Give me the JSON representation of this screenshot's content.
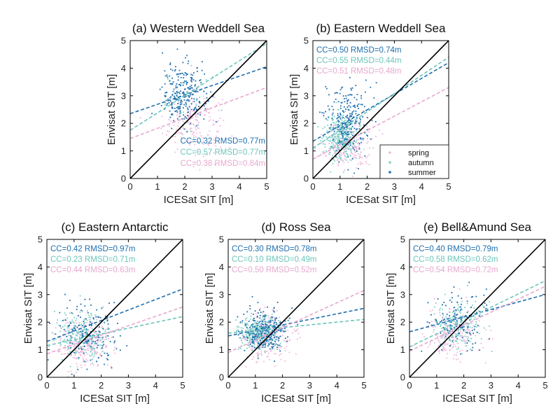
{
  "colors": {
    "spring": "#f2b8dc",
    "autumn": "#7fd1c8",
    "summer": "#1f6fae",
    "one_to_one": "#000000"
  },
  "legend": {
    "entries": [
      {
        "name": "spring",
        "color": "#f2b8dc"
      },
      {
        "name": "autumn",
        "color": "#7fd1c8"
      },
      {
        "name": "summer",
        "color": "#1f6fae"
      }
    ],
    "placement": "bottom-right of panel (b)"
  },
  "chart_data": [
    {
      "type": "scatter",
      "title": "(a) Western Weddell Sea",
      "xlabel": "ICESat SIT [m]",
      "ylabel": "Envisat SIT [m]",
      "xlim": [
        0,
        5
      ],
      "ylim": [
        0,
        5
      ],
      "xticks": [
        "0",
        "1",
        "2",
        "3",
        "4",
        "5"
      ],
      "yticks": [
        "0",
        "1",
        "2",
        "3",
        "4",
        "5"
      ],
      "one_to_one_line": true,
      "stats_position": "bottom-right",
      "stats": [
        {
          "season": "summer",
          "text": "CC=0.32 RMSD=0.77m"
        },
        {
          "season": "autumn",
          "text": "CC=0.57 RMSD=0.77m"
        },
        {
          "season": "spring",
          "text": "CC=0.38 RMSD=0.84m"
        }
      ],
      "fit_lines": [
        {
          "season": "summer",
          "x": [
            0,
            5
          ],
          "y": [
            2.35,
            4.05
          ]
        },
        {
          "season": "autumn",
          "x": [
            0,
            5
          ],
          "y": [
            1.75,
            4.9
          ]
        },
        {
          "season": "spring",
          "x": [
            0,
            5
          ],
          "y": [
            1.45,
            3.3
          ]
        }
      ],
      "clouds": [
        {
          "season": "spring",
          "count": 170,
          "cx": 2.3,
          "cy": 2.0,
          "sx": 0.55,
          "sy": 0.55
        },
        {
          "season": "autumn",
          "count": 40,
          "cx": 2.3,
          "cy": 2.7,
          "sx": 0.5,
          "sy": 0.6
        },
        {
          "season": "summer",
          "count": 260,
          "cx": 1.95,
          "cy": 3.05,
          "sx": 0.4,
          "sy": 0.55
        }
      ]
    },
    {
      "type": "scatter",
      "title": "(b) Eastern Weddell Sea",
      "xlabel": "ICESat SIT [m]",
      "ylabel": "Envisat SIT [m]",
      "xlim": [
        0,
        5
      ],
      "ylim": [
        0,
        5
      ],
      "xticks": [
        "0",
        "1",
        "2",
        "3",
        "4",
        "5"
      ],
      "yticks": [
        "0",
        "1",
        "2",
        "3",
        "4",
        "5"
      ],
      "one_to_one_line": true,
      "stats_position": "top-left",
      "stats": [
        {
          "season": "summer",
          "text": "CC=0.50 RMSD=0.74m"
        },
        {
          "season": "autumn",
          "text": "CC=0.55 RMSD=0.44m"
        },
        {
          "season": "spring",
          "text": "CC=0.51 RMSD=0.48m"
        }
      ],
      "fit_lines": [
        {
          "season": "summer",
          "x": [
            0,
            5
          ],
          "y": [
            1.35,
            4.2
          ]
        },
        {
          "season": "autumn",
          "x": [
            0,
            5
          ],
          "y": [
            1.1,
            4.4
          ]
        },
        {
          "season": "spring",
          "x": [
            0,
            5
          ],
          "y": [
            0.7,
            3.3
          ]
        }
      ],
      "clouds": [
        {
          "season": "spring",
          "count": 220,
          "cx": 1.3,
          "cy": 1.25,
          "sx": 0.45,
          "sy": 0.45
        },
        {
          "season": "autumn",
          "count": 330,
          "cx": 1.0,
          "cy": 1.5,
          "sx": 0.3,
          "sy": 0.4
        },
        {
          "season": "summer",
          "count": 240,
          "cx": 1.25,
          "cy": 2.1,
          "sx": 0.4,
          "sy": 0.65
        }
      ]
    },
    {
      "type": "scatter",
      "title": "(c) Eastern Antarctic",
      "xlabel": "ICESat SIT [m]",
      "ylabel": "Envisat SIT [m]",
      "xlim": [
        0,
        5
      ],
      "ylim": [
        0,
        5
      ],
      "xticks": [
        "0",
        "1",
        "2",
        "3",
        "4",
        "5"
      ],
      "yticks": [
        "0",
        "1",
        "2",
        "3",
        "4",
        "5"
      ],
      "one_to_one_line": true,
      "stats_position": "top-left",
      "stats": [
        {
          "season": "summer",
          "text": "CC=0.42 RMSD=0.97m"
        },
        {
          "season": "autumn",
          "text": "CC=0.23 RMSD=0.71m"
        },
        {
          "season": "spring",
          "text": "CC=0.44 RMSD=0.63m"
        }
      ],
      "fit_lines": [
        {
          "season": "summer",
          "x": [
            0,
            5
          ],
          "y": [
            1.3,
            3.2
          ]
        },
        {
          "season": "autumn",
          "x": [
            0,
            5
          ],
          "y": [
            1.15,
            2.2
          ]
        },
        {
          "season": "spring",
          "x": [
            0,
            5
          ],
          "y": [
            0.85,
            2.55
          ]
        }
      ],
      "clouds": [
        {
          "season": "spring",
          "count": 260,
          "cx": 1.4,
          "cy": 1.2,
          "sx": 0.5,
          "sy": 0.45
        },
        {
          "season": "autumn",
          "count": 240,
          "cx": 1.25,
          "cy": 1.5,
          "sx": 0.45,
          "sy": 0.45
        },
        {
          "season": "summer",
          "count": 160,
          "cx": 1.45,
          "cy": 1.6,
          "sx": 0.6,
          "sy": 0.55
        }
      ]
    },
    {
      "type": "scatter",
      "title": "(d) Ross Sea",
      "xlabel": "ICESat SIT [m]",
      "ylabel": "Envisat SIT [m]",
      "xlim": [
        0,
        5
      ],
      "ylim": [
        0,
        5
      ],
      "xticks": [
        "0",
        "1",
        "2",
        "3",
        "4",
        "5"
      ],
      "yticks": [
        "0",
        "1",
        "2",
        "3",
        "4",
        "5"
      ],
      "one_to_one_line": true,
      "stats_position": "top-left",
      "stats": [
        {
          "season": "summer",
          "text": "CC=0.30 RMSD=0.78m"
        },
        {
          "season": "autumn",
          "text": "CC=0.10 RMSD=0.49m"
        },
        {
          "season": "spring",
          "text": "CC=0.50 RMSD=0.52m"
        }
      ],
      "fit_lines": [
        {
          "season": "summer",
          "x": [
            0,
            5
          ],
          "y": [
            1.5,
            2.5
          ]
        },
        {
          "season": "autumn",
          "x": [
            0,
            5
          ],
          "y": [
            1.6,
            2.1
          ]
        },
        {
          "season": "spring",
          "x": [
            0,
            5
          ],
          "y": [
            0.9,
            3.15
          ]
        }
      ],
      "clouds": [
        {
          "season": "spring",
          "count": 220,
          "cx": 1.4,
          "cy": 1.4,
          "sx": 0.45,
          "sy": 0.45
        },
        {
          "season": "autumn",
          "count": 320,
          "cx": 1.15,
          "cy": 1.6,
          "sx": 0.35,
          "sy": 0.3
        },
        {
          "season": "summer",
          "count": 260,
          "cx": 1.3,
          "cy": 1.65,
          "sx": 0.45,
          "sy": 0.4
        }
      ]
    },
    {
      "type": "scatter",
      "title": "(e) Bell&Amund Sea",
      "xlabel": "ICESat SIT [m]",
      "ylabel": "Envisat SIT [m]",
      "xlim": [
        0,
        5
      ],
      "ylim": [
        0,
        5
      ],
      "xticks": [
        "0",
        "1",
        "2",
        "3",
        "4",
        "5"
      ],
      "yticks": [
        "0",
        "1",
        "2",
        "3",
        "4",
        "5"
      ],
      "one_to_one_line": true,
      "stats_position": "top-left",
      "stats": [
        {
          "season": "summer",
          "text": "CC=0.40 RMSD=0.79m"
        },
        {
          "season": "autumn",
          "text": "CC=0.58 RMSD=0.62m"
        },
        {
          "season": "spring",
          "text": "CC=0.54 RMSD=0.72m"
        }
      ],
      "fit_lines": [
        {
          "season": "summer",
          "x": [
            0,
            5
          ],
          "y": [
            1.65,
            3.0
          ]
        },
        {
          "season": "autumn",
          "x": [
            0,
            5
          ],
          "y": [
            1.1,
            3.5
          ]
        },
        {
          "season": "spring",
          "x": [
            0,
            5
          ],
          "y": [
            0.95,
            3.3
          ]
        }
      ],
      "clouds": [
        {
          "season": "spring",
          "count": 200,
          "cx": 1.6,
          "cy": 1.6,
          "sx": 0.5,
          "sy": 0.5
        },
        {
          "season": "autumn",
          "count": 180,
          "cx": 1.7,
          "cy": 1.9,
          "sx": 0.45,
          "sy": 0.45
        },
        {
          "season": "summer",
          "count": 140,
          "cx": 1.8,
          "cy": 2.1,
          "sx": 0.55,
          "sy": 0.5
        }
      ]
    }
  ]
}
